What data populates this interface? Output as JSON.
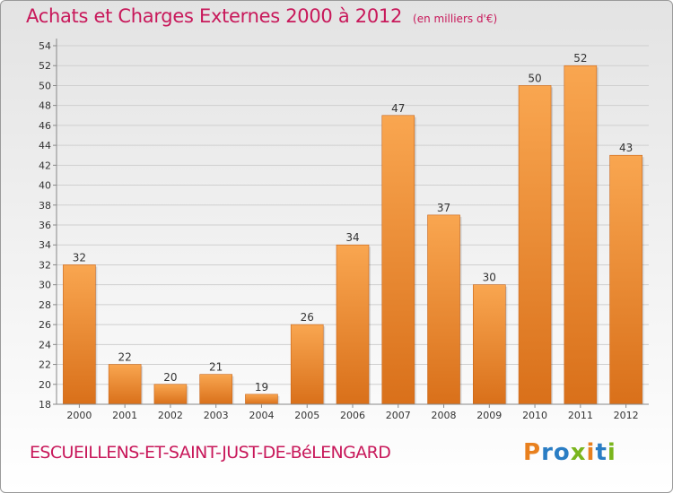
{
  "header": {
    "title": "Achats et Charges Externes 2000 à 2012",
    "unit": "(en milliers d'€)"
  },
  "footer": {
    "commune": "ESCUEILLENS-ET-SAINT-JUST-DE-BéLENGARD",
    "brand": "Proxiti",
    "brand_letters": [
      "P",
      "r",
      "o",
      "x",
      "i",
      "t",
      "i"
    ],
    "brand_colors": [
      "#e8801e",
      "#2a7dc4",
      "#2a7dc4",
      "#7ab51d",
      "#e8801e",
      "#2a7dc4",
      "#7ab51d"
    ]
  },
  "colors": {
    "bar_light": "#f9a650",
    "bar_dark": "#d9701a",
    "grid": "#cfcfcf",
    "axis": "#888888"
  },
  "chart_data": {
    "type": "bar",
    "categories": [
      "2000",
      "2001",
      "2002",
      "2003",
      "2004",
      "2005",
      "2006",
      "2007",
      "2008",
      "2009",
      "2010",
      "2011",
      "2012"
    ],
    "values": [
      32,
      22,
      20,
      21,
      19,
      26,
      34,
      47,
      37,
      30,
      50,
      52,
      43
    ],
    "ylim": [
      18,
      54
    ],
    "yticks": [
      18,
      20,
      22,
      24,
      26,
      28,
      30,
      32,
      34,
      36,
      38,
      40,
      42,
      44,
      46,
      48,
      50,
      52,
      54
    ],
    "grid": true,
    "data_labels": true
  }
}
